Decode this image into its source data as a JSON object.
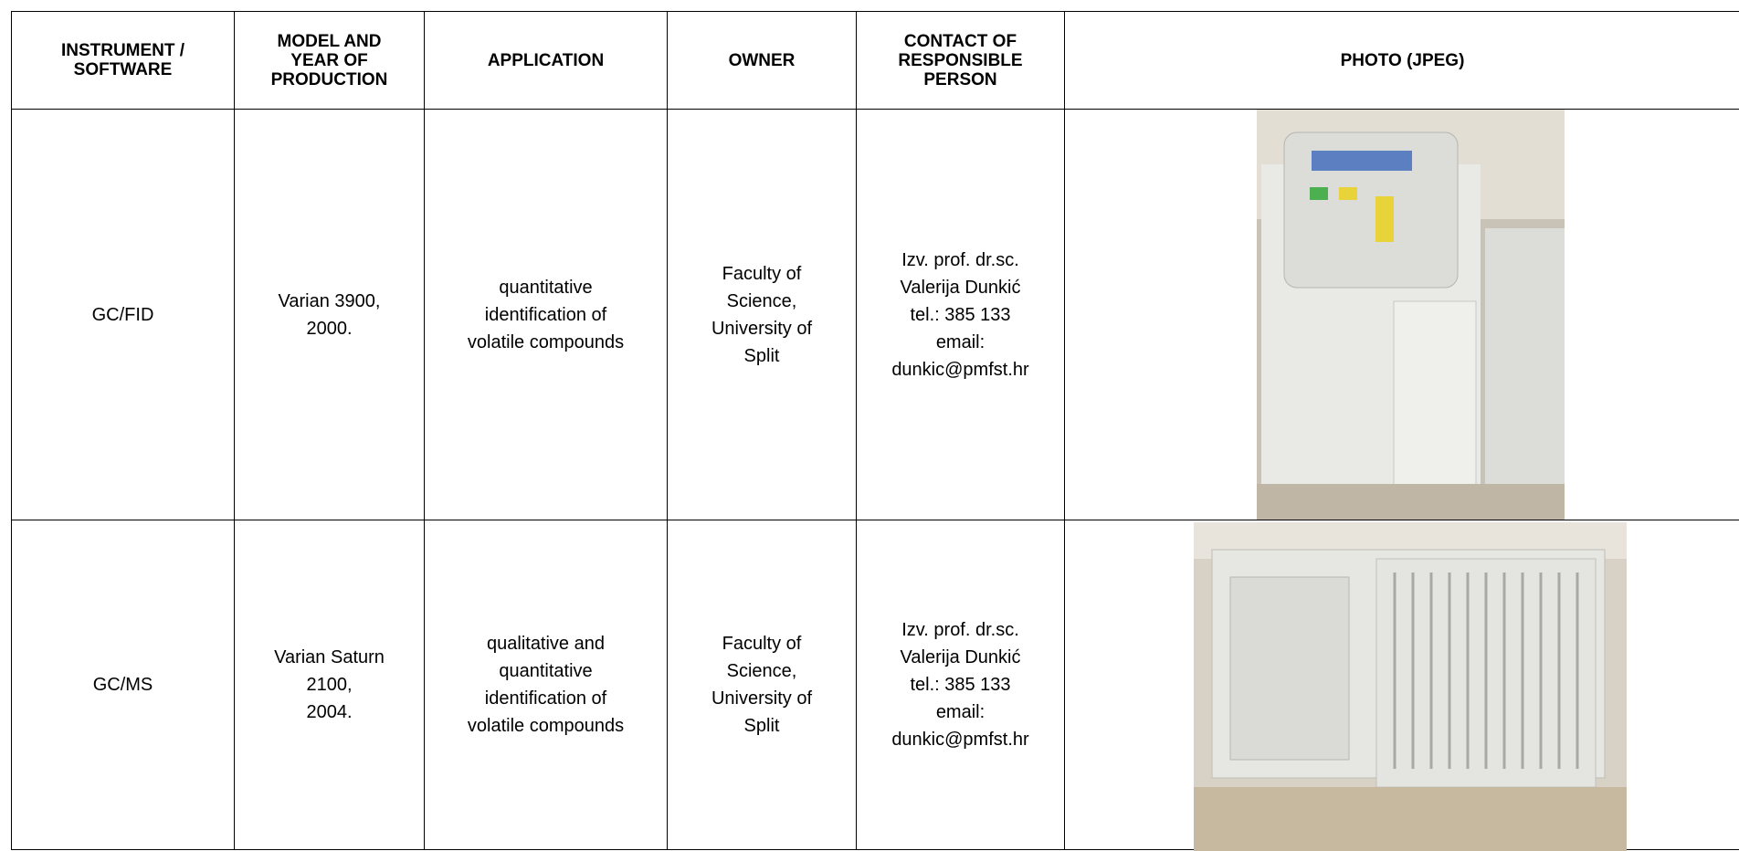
{
  "table": {
    "header": [
      "INSTRUMENT /\nSOFTWARE",
      "MODEL AND\nYEAR OF\nPRODUCTION",
      "APPLICATION",
      "OWNER",
      "CONTACT OF\nRESPONSIBLE\nPERSON",
      "PHOTO (JPEG)"
    ],
    "rows": [
      [
        "GC/FID",
        "Varian 3900,\n2000.",
        "quantitative\nidentification of\nvolatile compounds",
        "Faculty of\nScience,\nUniversity of\nSplit",
        "Izv. prof. dr.sc.\nValerija Dunkić\ntel.: 385 133\nemail:\ndunkic@pmfst.hr"
      ],
      [
        "GC/MS",
        "Varian Saturn\n2100,\n2004.",
        "qualitative and\nquantitative\nidentification of\nvolatile compounds",
        "Faculty of\nScience,\nUniversity of\nSplit",
        "Izv. prof. dr.sc.\nValerija Dunkić\ntel.: 385 133\nemail:\ndunkic@pmfst.hr"
      ]
    ]
  }
}
